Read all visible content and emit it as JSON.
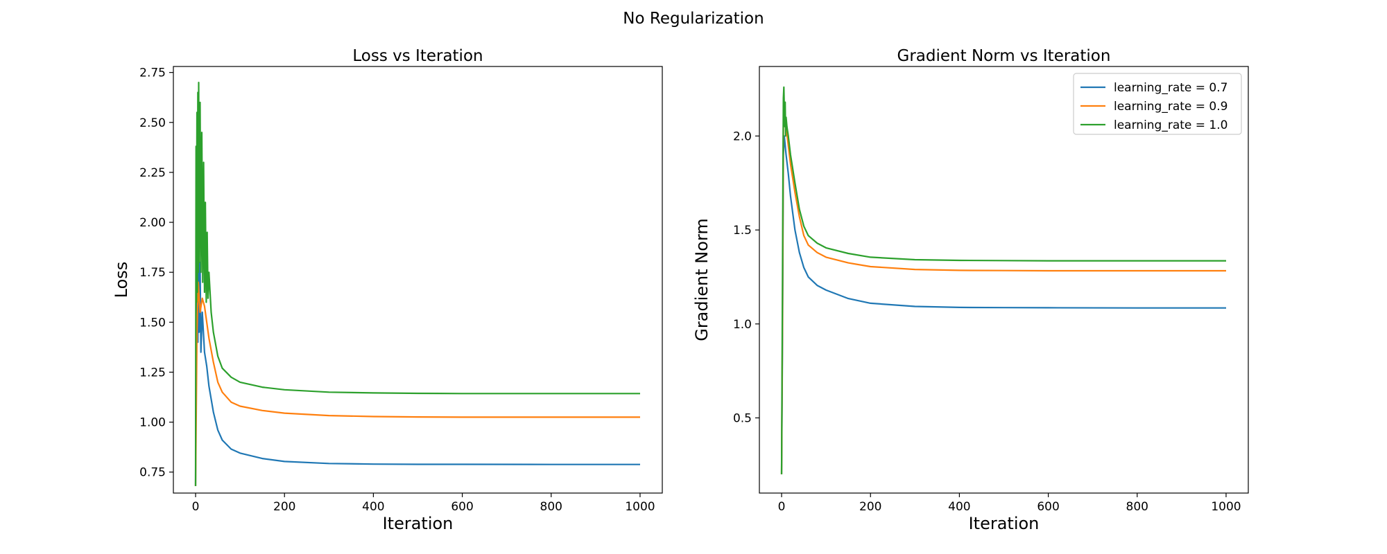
{
  "figure": {
    "suptitle": "No Regularization"
  },
  "chart_data": [
    {
      "type": "line",
      "title": "Loss vs Iteration",
      "xlabel": "Iteration",
      "ylabel": "Loss",
      "xlim": [
        -50,
        1050
      ],
      "ylim": [
        0.645,
        2.78
      ],
      "xticks": [
        0,
        200,
        400,
        600,
        800,
        1000
      ],
      "yticks": [
        0.75,
        1.0,
        1.25,
        1.5,
        1.75,
        2.0,
        2.25,
        2.5,
        2.75
      ],
      "ytick_labels": [
        "0.75",
        "1.00",
        "1.25",
        "1.50",
        "1.75",
        "2.00",
        "2.25",
        "2.50",
        "2.75"
      ],
      "grid": false,
      "legend": null,
      "series": [
        {
          "label": "learning_rate = 0.7",
          "color": "#1f77b4",
          "points": [
            [
              0,
              0.68
            ],
            [
              2,
              1.95
            ],
            [
              3,
              1.55
            ],
            [
              4,
              2.35
            ],
            [
              5,
              1.4
            ],
            [
              6,
              2.1
            ],
            [
              8,
              1.45
            ],
            [
              10,
              1.8
            ],
            [
              12,
              1.35
            ],
            [
              15,
              1.55
            ],
            [
              20,
              1.35
            ],
            [
              25,
              1.28
            ],
            [
              30,
              1.18
            ],
            [
              40,
              1.05
            ],
            [
              50,
              0.96
            ],
            [
              60,
              0.91
            ],
            [
              80,
              0.865
            ],
            [
              100,
              0.845
            ],
            [
              150,
              0.818
            ],
            [
              200,
              0.803
            ],
            [
              300,
              0.793
            ],
            [
              400,
              0.79
            ],
            [
              500,
              0.789
            ],
            [
              600,
              0.789
            ],
            [
              800,
              0.788
            ],
            [
              1000,
              0.788
            ]
          ]
        },
        {
          "label": "learning_rate = 0.9",
          "color": "#ff7f0e",
          "points": [
            [
              0,
              0.68
            ],
            [
              3,
              1.45
            ],
            [
              6,
              1.7
            ],
            [
              10,
              1.55
            ],
            [
              15,
              1.62
            ],
            [
              20,
              1.58
            ],
            [
              25,
              1.5
            ],
            [
              30,
              1.42
            ],
            [
              40,
              1.3
            ],
            [
              50,
              1.2
            ],
            [
              60,
              1.15
            ],
            [
              80,
              1.1
            ],
            [
              100,
              1.08
            ],
            [
              150,
              1.058
            ],
            [
              200,
              1.045
            ],
            [
              300,
              1.033
            ],
            [
              400,
              1.028
            ],
            [
              500,
              1.026
            ],
            [
              600,
              1.025
            ],
            [
              800,
              1.025
            ],
            [
              1000,
              1.025
            ]
          ]
        },
        {
          "label": "learning_rate = 1.0",
          "color": "#2ca02c",
          "points": [
            [
              0,
              0.68
            ],
            [
              1,
              2.38
            ],
            [
              2,
              1.6
            ],
            [
              3,
              2.55
            ],
            [
              4,
              1.65
            ],
            [
              5,
              2.65
            ],
            [
              6,
              1.75
            ],
            [
              7,
              2.7
            ],
            [
              8,
              1.8
            ],
            [
              10,
              2.6
            ],
            [
              12,
              1.75
            ],
            [
              14,
              2.45
            ],
            [
              16,
              1.7
            ],
            [
              18,
              2.3
            ],
            [
              20,
              1.65
            ],
            [
              22,
              2.1
            ],
            [
              24,
              1.6
            ],
            [
              26,
              1.95
            ],
            [
              28,
              1.62
            ],
            [
              30,
              1.75
            ],
            [
              35,
              1.55
            ],
            [
              40,
              1.45
            ],
            [
              50,
              1.33
            ],
            [
              60,
              1.27
            ],
            [
              80,
              1.225
            ],
            [
              100,
              1.2
            ],
            [
              150,
              1.175
            ],
            [
              200,
              1.162
            ],
            [
              300,
              1.15
            ],
            [
              400,
              1.146
            ],
            [
              500,
              1.144
            ],
            [
              600,
              1.143
            ],
            [
              800,
              1.143
            ],
            [
              1000,
              1.143
            ]
          ]
        }
      ]
    },
    {
      "type": "line",
      "title": "Gradient Norm vs Iteration",
      "xlabel": "Iteration",
      "ylabel": "Gradient Norm",
      "xlim": [
        -50,
        1050
      ],
      "ylim": [
        0.1,
        2.37
      ],
      "xticks": [
        0,
        200,
        400,
        600,
        800,
        1000
      ],
      "yticks": [
        0.5,
        1.0,
        1.5,
        2.0
      ],
      "ytick_labels": [
        "0.5",
        "1.0",
        "1.5",
        "2.0"
      ],
      "grid": false,
      "legend": {
        "placement": "upper right",
        "entries": [
          "learning_rate = 0.7",
          "learning_rate = 0.9",
          "learning_rate = 1.0"
        ]
      },
      "series": [
        {
          "label": "learning_rate = 0.7",
          "color": "#1f77b4",
          "points": [
            [
              0,
              0.2
            ],
            [
              2,
              0.9
            ],
            [
              4,
              1.9
            ],
            [
              6,
              2.0
            ],
            [
              8,
              1.95
            ],
            [
              10,
              1.9
            ],
            [
              15,
              1.8
            ],
            [
              20,
              1.68
            ],
            [
              30,
              1.5
            ],
            [
              40,
              1.38
            ],
            [
              50,
              1.3
            ],
            [
              60,
              1.25
            ],
            [
              80,
              1.205
            ],
            [
              100,
              1.18
            ],
            [
              150,
              1.135
            ],
            [
              200,
              1.11
            ],
            [
              300,
              1.093
            ],
            [
              400,
              1.088
            ],
            [
              500,
              1.087
            ],
            [
              600,
              1.086
            ],
            [
              800,
              1.085
            ],
            [
              1000,
              1.085
            ]
          ]
        },
        {
          "label": "learning_rate = 0.9",
          "color": "#ff7f0e",
          "points": [
            [
              0,
              0.2
            ],
            [
              2,
              1.0
            ],
            [
              4,
              2.05
            ],
            [
              6,
              2.15
            ],
            [
              8,
              2.08
            ],
            [
              10,
              2.05
            ],
            [
              15,
              1.95
            ],
            [
              20,
              1.85
            ],
            [
              30,
              1.7
            ],
            [
              40,
              1.57
            ],
            [
              50,
              1.47
            ],
            [
              60,
              1.42
            ],
            [
              80,
              1.38
            ],
            [
              100,
              1.355
            ],
            [
              150,
              1.325
            ],
            [
              200,
              1.305
            ],
            [
              300,
              1.29
            ],
            [
              400,
              1.285
            ],
            [
              500,
              1.284
            ],
            [
              600,
              1.283
            ],
            [
              800,
              1.283
            ],
            [
              1000,
              1.283
            ]
          ]
        },
        {
          "label": "learning_rate = 1.0",
          "color": "#2ca02c",
          "points": [
            [
              0,
              0.2
            ],
            [
              2,
              1.2
            ],
            [
              3,
              1.8
            ],
            [
              4,
              2.2
            ],
            [
              5,
              2.26
            ],
            [
              6,
              2.15
            ],
            [
              7,
              2.05
            ],
            [
              8,
              2.18
            ],
            [
              9,
              2.0
            ],
            [
              10,
              2.1
            ],
            [
              12,
              2.05
            ],
            [
              15,
              2.0
            ],
            [
              20,
              1.9
            ],
            [
              30,
              1.75
            ],
            [
              40,
              1.61
            ],
            [
              50,
              1.52
            ],
            [
              60,
              1.47
            ],
            [
              80,
              1.43
            ],
            [
              100,
              1.405
            ],
            [
              150,
              1.375
            ],
            [
              200,
              1.355
            ],
            [
              300,
              1.342
            ],
            [
              400,
              1.338
            ],
            [
              500,
              1.337
            ],
            [
              600,
              1.336
            ],
            [
              800,
              1.336
            ],
            [
              1000,
              1.336
            ]
          ]
        }
      ]
    }
  ]
}
